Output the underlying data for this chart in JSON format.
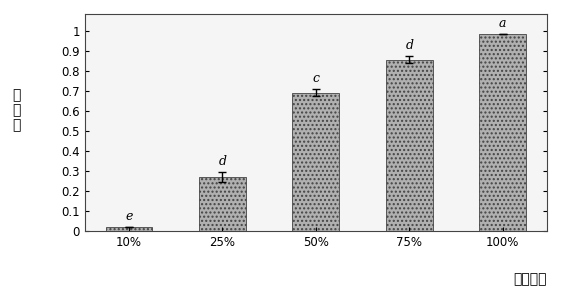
{
  "categories": [
    "10%",
    "25%",
    "50%",
    "75%",
    "100%"
  ],
  "values": [
    0.02,
    0.27,
    0.69,
    0.855,
    0.985
  ],
  "errors": [
    0.0,
    0.025,
    0.018,
    0.018,
    0.0
  ],
  "significance": [
    "e",
    "d",
    "c",
    "d",
    "a"
  ],
  "bar_color": "#b0b0b0",
  "bar_hatch": "....",
  "ylabel_chars": [
    "抑",
    "制",
    "率"
  ],
  "xlabel": "滤液浓度",
  "ylim": [
    0,
    1.08
  ],
  "yticks": [
    0,
    0.1,
    0.2,
    0.3,
    0.4,
    0.5,
    0.6,
    0.7,
    0.8,
    0.9,
    1
  ],
  "bg_color": "#ffffff",
  "plot_bg_color": "#f5f5f5",
  "bar_edge_color": "#444444",
  "sig_fontsize": 9,
  "label_fontsize": 10,
  "tick_fontsize": 8.5
}
